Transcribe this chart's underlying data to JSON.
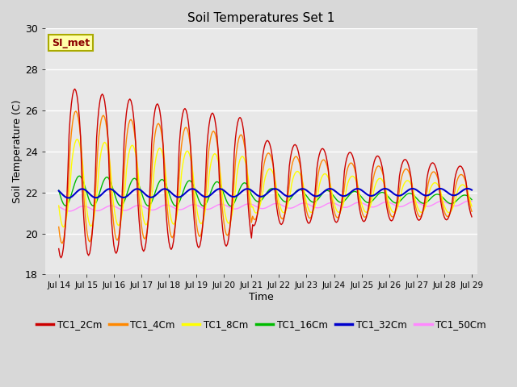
{
  "title": "Soil Temperatures Set 1",
  "xlabel": "Time",
  "ylabel": "Soil Temperature (C)",
  "ylim": [
    18,
    30
  ],
  "xlim_days": [
    13.5,
    29.2
  ],
  "x_ticks": [
    14,
    15,
    16,
    17,
    18,
    19,
    20,
    21,
    22,
    23,
    24,
    25,
    26,
    27,
    28,
    29
  ],
  "x_tick_labels": [
    "Jul 14",
    "Jul 15",
    "Jul 16",
    "Jul 17",
    "Jul 18",
    "Jul 19",
    "Jul 20",
    "Jul 21",
    "Jul 22",
    "Jul 23",
    "Jul 24",
    "Jul 25",
    "Jul 26",
    "Jul 27",
    "Jul 28",
    "Jul 29"
  ],
  "annotation_text": "SI_met",
  "bg_color": "#e8e8e8",
  "legend_entries": [
    "TC1_2Cm",
    "TC1_4Cm",
    "TC1_8Cm",
    "TC1_16Cm",
    "TC1_32Cm",
    "TC1_50Cm"
  ],
  "line_colors": [
    "#cc0000",
    "#ff8800",
    "#ffff00",
    "#00bb00",
    "#0000cc",
    "#ff88ff"
  ],
  "line_widths": [
    1.0,
    1.0,
    1.0,
    1.0,
    1.5,
    1.0
  ],
  "fig_bg": "#d8d8d8",
  "plot_bg": "#e8e8e8"
}
